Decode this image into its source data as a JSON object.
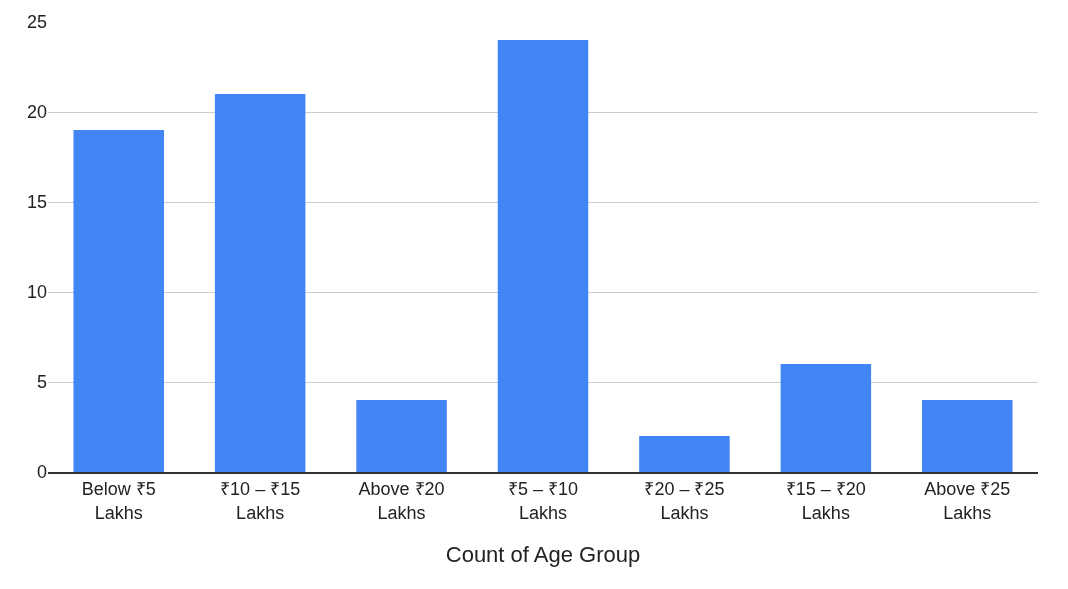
{
  "chart_data": {
    "type": "bar",
    "xlabel": "Count of Age Group",
    "categories": [
      "Below ₹5 Lakhs",
      "₹10 – ₹15 Lakhs",
      "Above ₹20 Lakhs",
      "₹5 – ₹10 Lakhs",
      "₹20 – ₹25 Lakhs",
      "₹15 – ₹20 Lakhs",
      "Above ₹25 Lakhs"
    ],
    "values": [
      19,
      21,
      4,
      24,
      2,
      6,
      4
    ],
    "color": "#4285f4",
    "ylim": [
      0,
      25
    ],
    "yticks": [
      0,
      5,
      10,
      15,
      20,
      25
    ],
    "grid": "y"
  }
}
